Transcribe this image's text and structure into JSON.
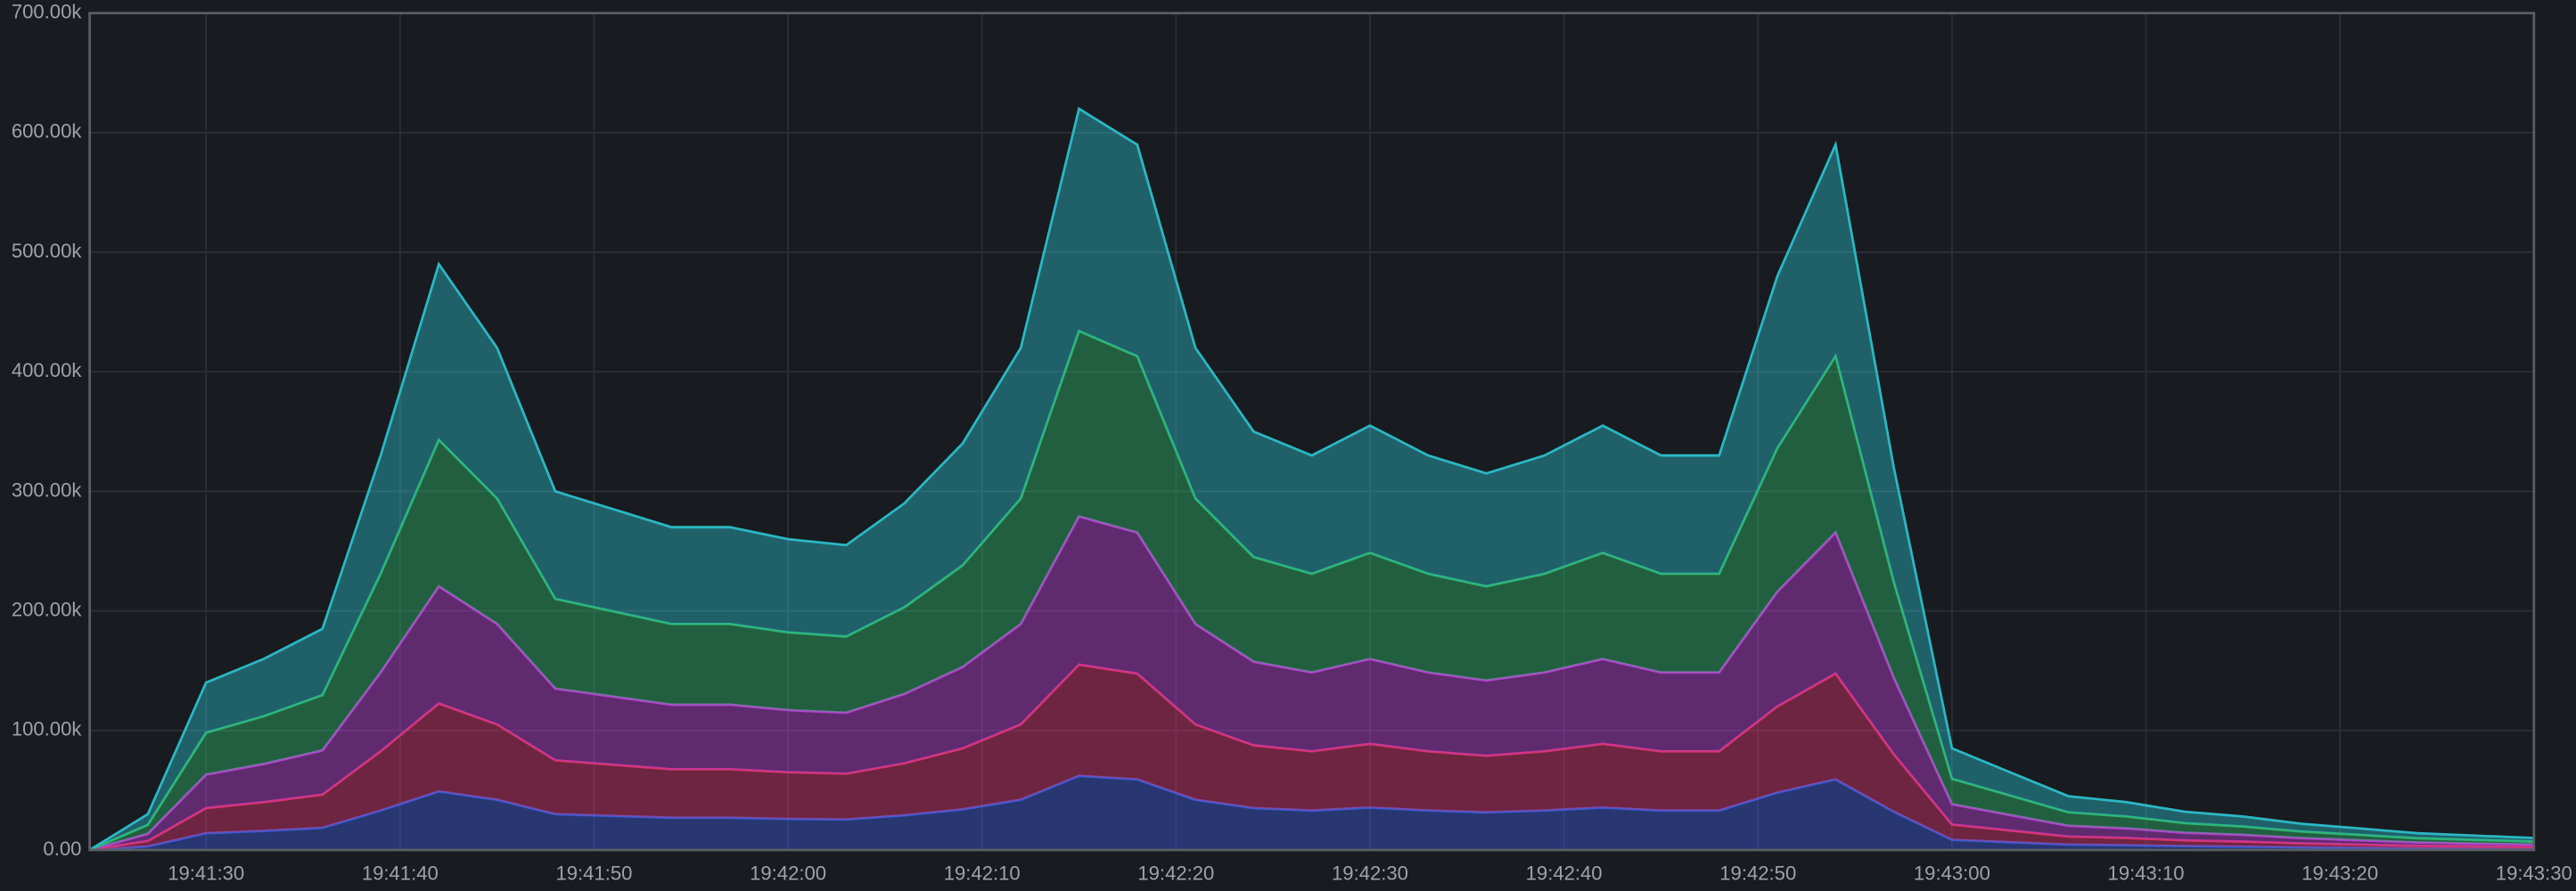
{
  "chart_data": {
    "type": "stacked-area",
    "x": [
      "19:41:24",
      "19:41:27",
      "19:41:30",
      "19:41:33",
      "19:41:36",
      "19:41:39",
      "19:41:42",
      "19:41:45",
      "19:41:48",
      "19:41:51",
      "19:41:54",
      "19:41:57",
      "19:42:00",
      "19:42:03",
      "19:42:06",
      "19:42:09",
      "19:42:12",
      "19:42:15",
      "19:42:18",
      "19:42:21",
      "19:42:24",
      "19:42:27",
      "19:42:30",
      "19:42:33",
      "19:42:36",
      "19:42:39",
      "19:42:42",
      "19:42:45",
      "19:42:48",
      "19:42:51",
      "19:42:54",
      "19:42:57",
      "19:43:00",
      "19:43:03",
      "19:43:06",
      "19:43:09",
      "19:43:12",
      "19:43:15",
      "19:43:18",
      "19:43:21",
      "19:43:24",
      "19:43:27",
      "19:43:30"
    ],
    "xlim": [
      "19:41:24",
      "19:43:30"
    ],
    "xticks": [
      "19:41:30",
      "19:41:40",
      "19:41:50",
      "19:42:00",
      "19:42:10",
      "19:42:20",
      "19:42:30",
      "19:42:40",
      "19:42:50",
      "19:43:00",
      "19:43:10",
      "19:43:20",
      "19:43:30"
    ],
    "ylim": [
      0,
      700000
    ],
    "yticks": [
      {
        "value": 0,
        "label": "0.00"
      },
      {
        "value": 100000,
        "label": "100.00k"
      },
      {
        "value": 200000,
        "label": "200.00k"
      },
      {
        "value": 300000,
        "label": "300.00k"
      },
      {
        "value": 400000,
        "label": "400.00k"
      },
      {
        "value": 500000,
        "label": "500.00k"
      },
      {
        "value": 600000,
        "label": "600.00k"
      },
      {
        "value": 700000,
        "label": "700.00k"
      }
    ],
    "grid": true,
    "series": [
      {
        "color": "#3b5bd6",
        "values": [
          0,
          3000,
          14000,
          16000,
          18500,
          33000,
          49000,
          42000,
          30000,
          28500,
          27000,
          27000,
          26000,
          25500,
          29000,
          34000,
          42000,
          62000,
          59000,
          42000,
          35000,
          33000,
          35500,
          33000,
          31500,
          33000,
          35500,
          33000,
          33000,
          48000,
          59000,
          32000,
          8500,
          6500,
          4500,
          4000,
          3200,
          2800,
          2200,
          1800,
          1400,
          1200,
          1000
        ]
      },
      {
        "color": "#d6336c",
        "values": [
          0,
          4500,
          21000,
          24000,
          27750,
          49500,
          73500,
          63000,
          45000,
          42750,
          40500,
          40500,
          39000,
          38250,
          43500,
          51000,
          63000,
          93000,
          88500,
          63000,
          52500,
          49500,
          53250,
          49500,
          47250,
          49500,
          53250,
          49500,
          49500,
          72000,
          88500,
          48000,
          12750,
          9750,
          6750,
          6000,
          4800,
          4200,
          3300,
          2700,
          2100,
          1800,
          1500
        ]
      },
      {
        "color": "#b83fd1",
        "values": [
          0,
          6000,
          28000,
          32000,
          37000,
          66000,
          98000,
          84000,
          60000,
          57000,
          54000,
          54000,
          52000,
          51000,
          58000,
          68000,
          84000,
          124000,
          118000,
          84000,
          70000,
          66000,
          71000,
          66000,
          63000,
          66000,
          71000,
          66000,
          66000,
          96000,
          118000,
          64000,
          17000,
          13000,
          9000,
          8000,
          6400,
          5600,
          4400,
          3600,
          2800,
          2400,
          2000
        ]
      },
      {
        "color": "#2fb36b",
        "values": [
          0,
          7500,
          35000,
          40000,
          46250,
          82500,
          122500,
          105000,
          75000,
          71250,
          67500,
          67500,
          65000,
          63750,
          72500,
          85000,
          105000,
          155000,
          147500,
          105000,
          87500,
          82500,
          88750,
          82500,
          78750,
          82500,
          88750,
          82500,
          82500,
          120000,
          147500,
          80000,
          21250,
          16250,
          11250,
          10000,
          8000,
          7000,
          5500,
          4500,
          3500,
          3000,
          2500
        ]
      },
      {
        "color": "#2bb7c4",
        "values": [
          0,
          9000,
          42000,
          48000,
          55500,
          99000,
          147000,
          126000,
          90000,
          85500,
          81000,
          81000,
          78000,
          76500,
          87000,
          102000,
          126000,
          186000,
          177000,
          126000,
          105000,
          99000,
          106500,
          99000,
          94500,
          99000,
          106500,
          99000,
          99000,
          144000,
          177000,
          96000,
          25500,
          19500,
          13500,
          12000,
          9600,
          8400,
          6600,
          5400,
          4200,
          3600,
          3000
        ]
      }
    ]
  }
}
